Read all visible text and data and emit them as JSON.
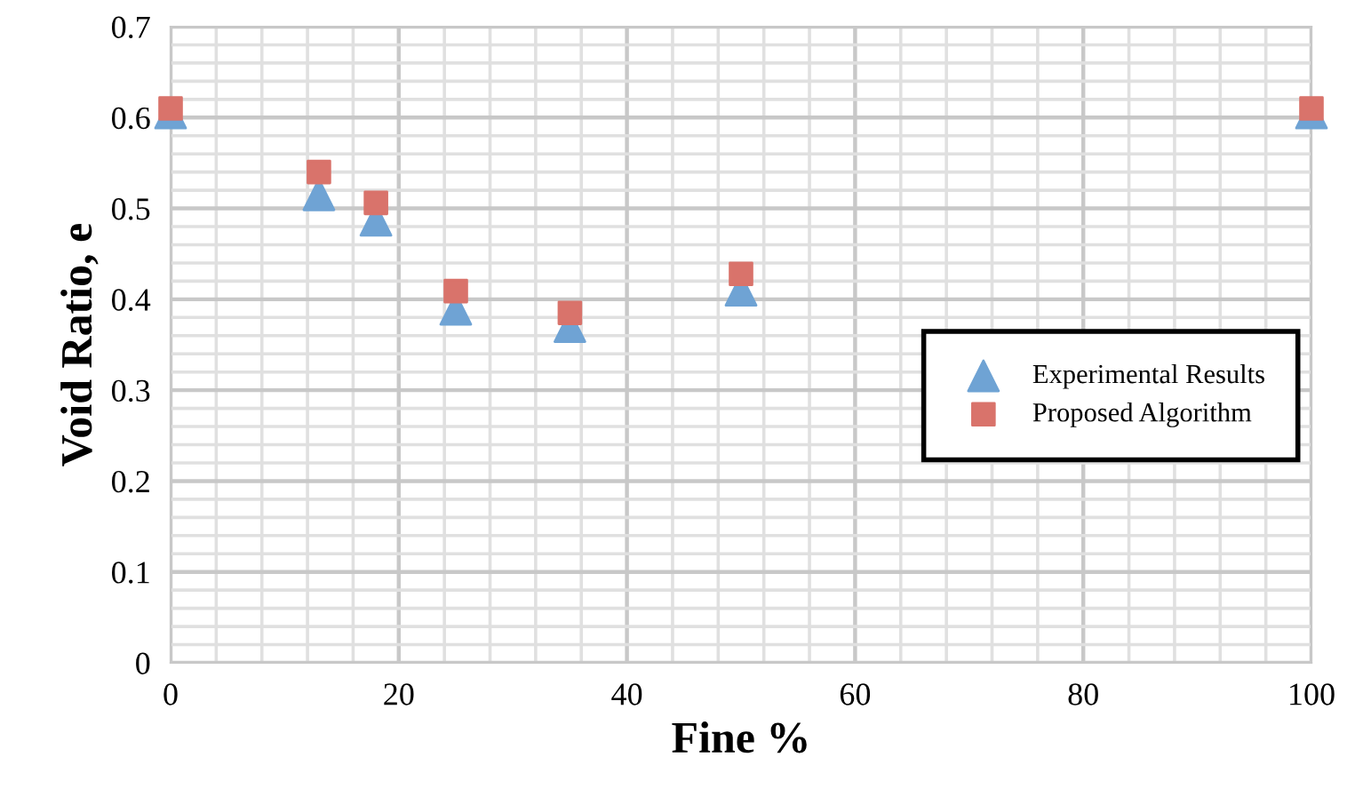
{
  "chart_data": {
    "type": "scatter",
    "xlabel": "Fine %",
    "ylabel": "Void Ratio, e",
    "xlim": [
      0,
      100
    ],
    "xticks": [
      0,
      20,
      40,
      60,
      80,
      100
    ],
    "ylim": [
      0,
      0.7
    ],
    "yticks": [
      0,
      0.1,
      0.2,
      0.3,
      0.4,
      0.5,
      0.6,
      0.7
    ],
    "grid": true,
    "legend": "right",
    "series": [
      {
        "name": "Experimental Results",
        "color": "#6fa3d4",
        "marker": "triangle",
        "x": [
          0,
          13,
          18,
          25,
          35,
          50,
          100
        ],
        "values": [
          0.605,
          0.515,
          0.487,
          0.389,
          0.37,
          0.41,
          0.605
        ]
      },
      {
        "name": "Proposed Algorithm",
        "color": "#d9736b",
        "marker": "square",
        "x": [
          0,
          13,
          18,
          25,
          35,
          50,
          100
        ],
        "values": [
          0.61,
          0.54,
          0.506,
          0.409,
          0.385,
          0.428,
          0.61
        ]
      }
    ]
  }
}
